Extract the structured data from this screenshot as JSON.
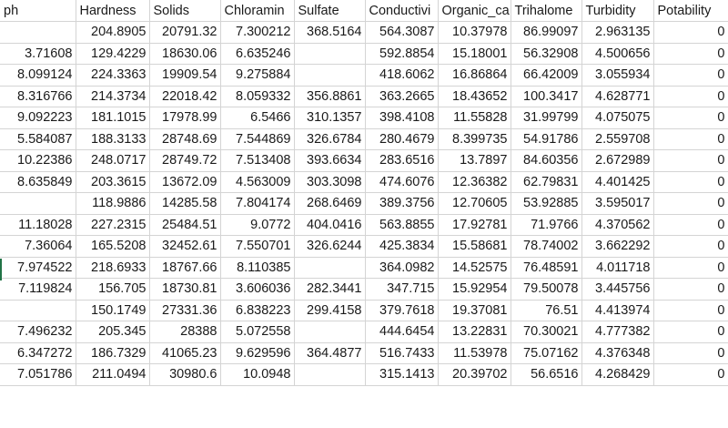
{
  "headers": [
    "ph",
    "Hardness",
    "Solids",
    "Chloramin",
    "Sulfate",
    "Conductivi",
    "Organic_ca",
    "Trihalome",
    "Turbidity",
    "Potability"
  ],
  "rows": [
    [
      "",
      "204.8905",
      "20791.32",
      "7.300212",
      "368.5164",
      "564.3087",
      "10.37978",
      "86.99097",
      "2.963135",
      "0"
    ],
    [
      "3.71608",
      "129.4229",
      "18630.06",
      "6.635246",
      "",
      "592.8854",
      "15.18001",
      "56.32908",
      "4.500656",
      "0"
    ],
    [
      "8.099124",
      "224.3363",
      "19909.54",
      "9.275884",
      "",
      "418.6062",
      "16.86864",
      "66.42009",
      "3.055934",
      "0"
    ],
    [
      "8.316766",
      "214.3734",
      "22018.42",
      "8.059332",
      "356.8861",
      "363.2665",
      "18.43652",
      "100.3417",
      "4.628771",
      "0"
    ],
    [
      "9.092223",
      "181.1015",
      "17978.99",
      "6.5466",
      "310.1357",
      "398.4108",
      "11.55828",
      "31.99799",
      "4.075075",
      "0"
    ],
    [
      "5.584087",
      "188.3133",
      "28748.69",
      "7.544869",
      "326.6784",
      "280.4679",
      "8.399735",
      "54.91786",
      "2.559708",
      "0"
    ],
    [
      "10.22386",
      "248.0717",
      "28749.72",
      "7.513408",
      "393.6634",
      "283.6516",
      "13.7897",
      "84.60356",
      "2.672989",
      "0"
    ],
    [
      "8.635849",
      "203.3615",
      "13672.09",
      "4.563009",
      "303.3098",
      "474.6076",
      "12.36382",
      "62.79831",
      "4.401425",
      "0"
    ],
    [
      "",
      "118.9886",
      "14285.58",
      "7.804174",
      "268.6469",
      "389.3756",
      "12.70605",
      "53.92885",
      "3.595017",
      "0"
    ],
    [
      "11.18028",
      "227.2315",
      "25484.51",
      "9.0772",
      "404.0416",
      "563.8855",
      "17.92781",
      "71.9766",
      "4.370562",
      "0"
    ],
    [
      "7.36064",
      "165.5208",
      "32452.61",
      "7.550701",
      "326.6244",
      "425.3834",
      "15.58681",
      "78.74002",
      "3.662292",
      "0"
    ],
    [
      "7.974522",
      "218.6933",
      "18767.66",
      "8.110385",
      "",
      "364.0982",
      "14.52575",
      "76.48591",
      "4.011718",
      "0"
    ],
    [
      "7.119824",
      "156.705",
      "18730.81",
      "3.606036",
      "282.3441",
      "347.715",
      "15.92954",
      "79.50078",
      "3.445756",
      "0"
    ],
    [
      "",
      "150.1749",
      "27331.36",
      "6.838223",
      "299.4158",
      "379.7618",
      "19.37081",
      "76.51",
      "4.413974",
      "0"
    ],
    [
      "7.496232",
      "205.345",
      "28388",
      "5.072558",
      "",
      "444.6454",
      "13.22831",
      "70.30021",
      "4.777382",
      "0"
    ],
    [
      "6.347272",
      "186.7329",
      "41065.23",
      "9.629596",
      "364.4877",
      "516.7433",
      "11.53978",
      "75.07162",
      "4.376348",
      "0"
    ],
    [
      "7.051786",
      "211.0494",
      "30980.6",
      "10.0948",
      "",
      "315.1413",
      "20.39702",
      "56.6516",
      "4.268429",
      "0"
    ]
  ],
  "colors": {
    "grid": "#d4d4d4",
    "selected_row_marker": "#217346",
    "text": "#1a1a1a"
  }
}
